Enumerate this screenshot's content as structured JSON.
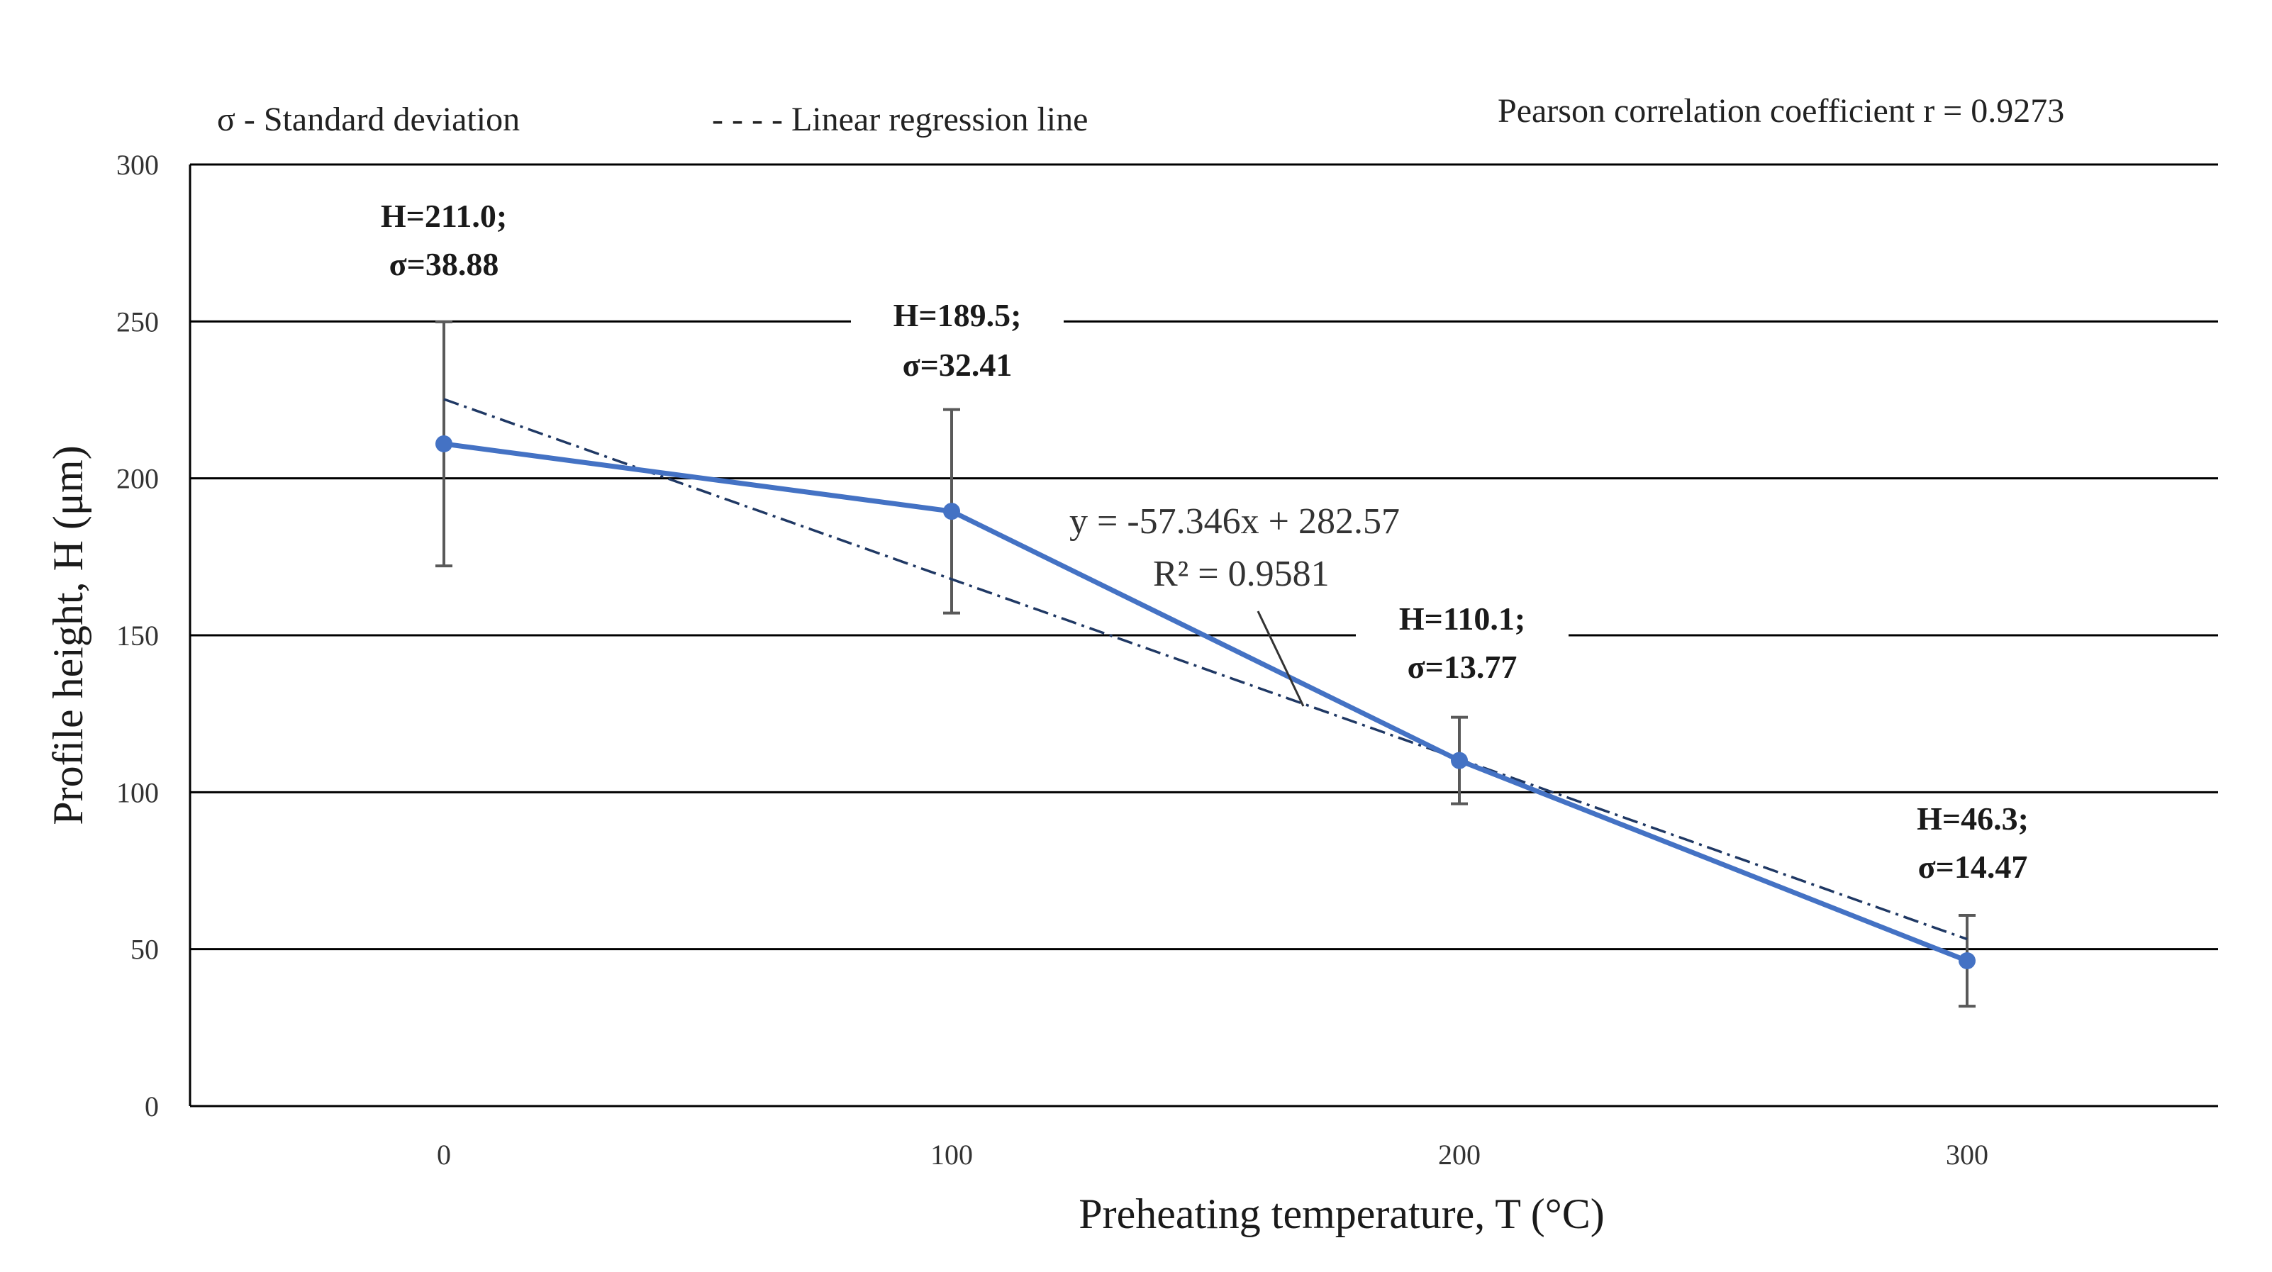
{
  "chart_data": {
    "type": "line",
    "xlabel": "Preheating temperature, T (°C)",
    "ylabel": "Profile height, H (μm)",
    "categories": [
      "0",
      "100",
      "200",
      "300"
    ],
    "x": [
      0,
      100,
      200,
      300
    ],
    "ylim": [
      0,
      300
    ],
    "yticks": [
      "0",
      "50",
      "100",
      "150",
      "200",
      "250",
      "300"
    ],
    "ytick_values": [
      0,
      50,
      100,
      150,
      200,
      250,
      300
    ],
    "grid": true,
    "series": [
      {
        "name": "Profile height",
        "values": [
          211.0,
          189.5,
          110.1,
          46.3
        ],
        "std": [
          38.88,
          32.41,
          13.77,
          14.47
        ],
        "color": "#4472C4"
      }
    ],
    "data_labels": [
      {
        "h": "H=211.0;",
        "s": "σ=38.88"
      },
      {
        "h": "H=189.5;",
        "s": "σ=32.41"
      },
      {
        "h": "H=110.1;",
        "s": "σ=13.77"
      },
      {
        "h": "H=46.3;",
        "s": "σ=14.47"
      }
    ],
    "regression": {
      "slope": -57.346,
      "intercept": 282.57,
      "equation": "y = -57.346x + 282.57",
      "r2": "R² = 0.9581",
      "color": "#1F3864"
    },
    "legend": {
      "std_label": "σ - Standard deviation",
      "regression_label": "- - - - Linear regression line",
      "pearson": "Pearson correlation coefficient r = 0.9273"
    },
    "colors": {
      "series": "#4472C4",
      "errorbar": "#595959",
      "grid": "#000000",
      "regression": "#1F3864"
    }
  }
}
